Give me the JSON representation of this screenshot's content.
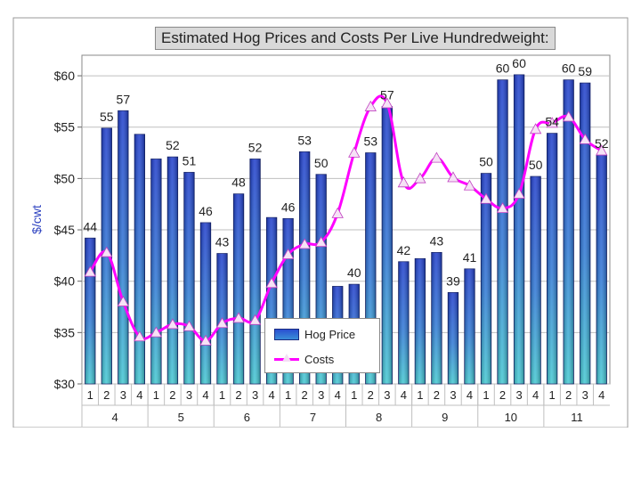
{
  "chart_data": {
    "type": "bar",
    "title": "Estimated Hog Prices and Costs Per Live Hundredweight:",
    "ylabel": "$/cwt",
    "ylim": [
      30,
      62
    ],
    "yticks": [
      30,
      35,
      40,
      45,
      50,
      55,
      60
    ],
    "ytick_labels": [
      "$30",
      "$35",
      "$40",
      "$45",
      "$50",
      "$55",
      "$60"
    ],
    "quarters": [
      "1",
      "2",
      "3",
      "4",
      "1",
      "2",
      "3",
      "4",
      "1",
      "2",
      "3",
      "4",
      "1",
      "2",
      "3",
      "4",
      "1",
      "2",
      "3",
      "4",
      "1",
      "2",
      "3",
      "4",
      "1",
      "2",
      "3",
      "4",
      "1",
      "2",
      "3",
      "4"
    ],
    "groups": [
      {
        "label": "4",
        "start": 0,
        "end": 3
      },
      {
        "label": "5",
        "start": 4,
        "end": 7
      },
      {
        "label": "6",
        "start": 8,
        "end": 11
      },
      {
        "label": "7",
        "start": 12,
        "end": 15
      },
      {
        "label": "8",
        "start": 16,
        "end": 19
      },
      {
        "label": "9",
        "start": 20,
        "end": 23
      },
      {
        "label": "10",
        "start": 24,
        "end": 27
      },
      {
        "label": "11",
        "start": 28,
        "end": 31
      }
    ],
    "series": [
      {
        "name": "Hog Price",
        "kind": "bar",
        "values": [
          44.2,
          54.9,
          56.6,
          54.3,
          51.9,
          52.1,
          50.6,
          45.7,
          42.7,
          48.5,
          51.9,
          46.2,
          46.1,
          52.6,
          50.4,
          39.5,
          39.7,
          52.5,
          57.0,
          41.9,
          42.2,
          42.8,
          38.9,
          41.2,
          50.5,
          59.6,
          60.1,
          50.2,
          54.4,
          59.6,
          59.3,
          52.3
        ],
        "labels": [
          "44",
          "55",
          "57",
          "",
          "",
          "52",
          "51",
          "46",
          "43",
          "48",
          "52",
          "",
          "46",
          "53",
          "50",
          "",
          "40",
          "53",
          "57",
          "42",
          "",
          "43",
          "39",
          "41",
          "50",
          "60",
          "60",
          "50",
          "54",
          "60",
          "59",
          "52"
        ]
      },
      {
        "name": "Costs",
        "kind": "line",
        "values": [
          40.9,
          42.8,
          38.0,
          34.6,
          35.0,
          35.8,
          35.6,
          34.2,
          35.9,
          36.4,
          36.2,
          39.8,
          42.6,
          43.6,
          43.8,
          46.6,
          52.5,
          57.0,
          57.3,
          49.6,
          50.0,
          52.0,
          50.1,
          49.3,
          48.0,
          47.1,
          48.5,
          54.8,
          55.4,
          56.0,
          53.8,
          52.7
        ]
      }
    ],
    "legend": [
      "Hog Price",
      "Costs"
    ],
    "legend_position": "bottom-center",
    "grid": true
  }
}
